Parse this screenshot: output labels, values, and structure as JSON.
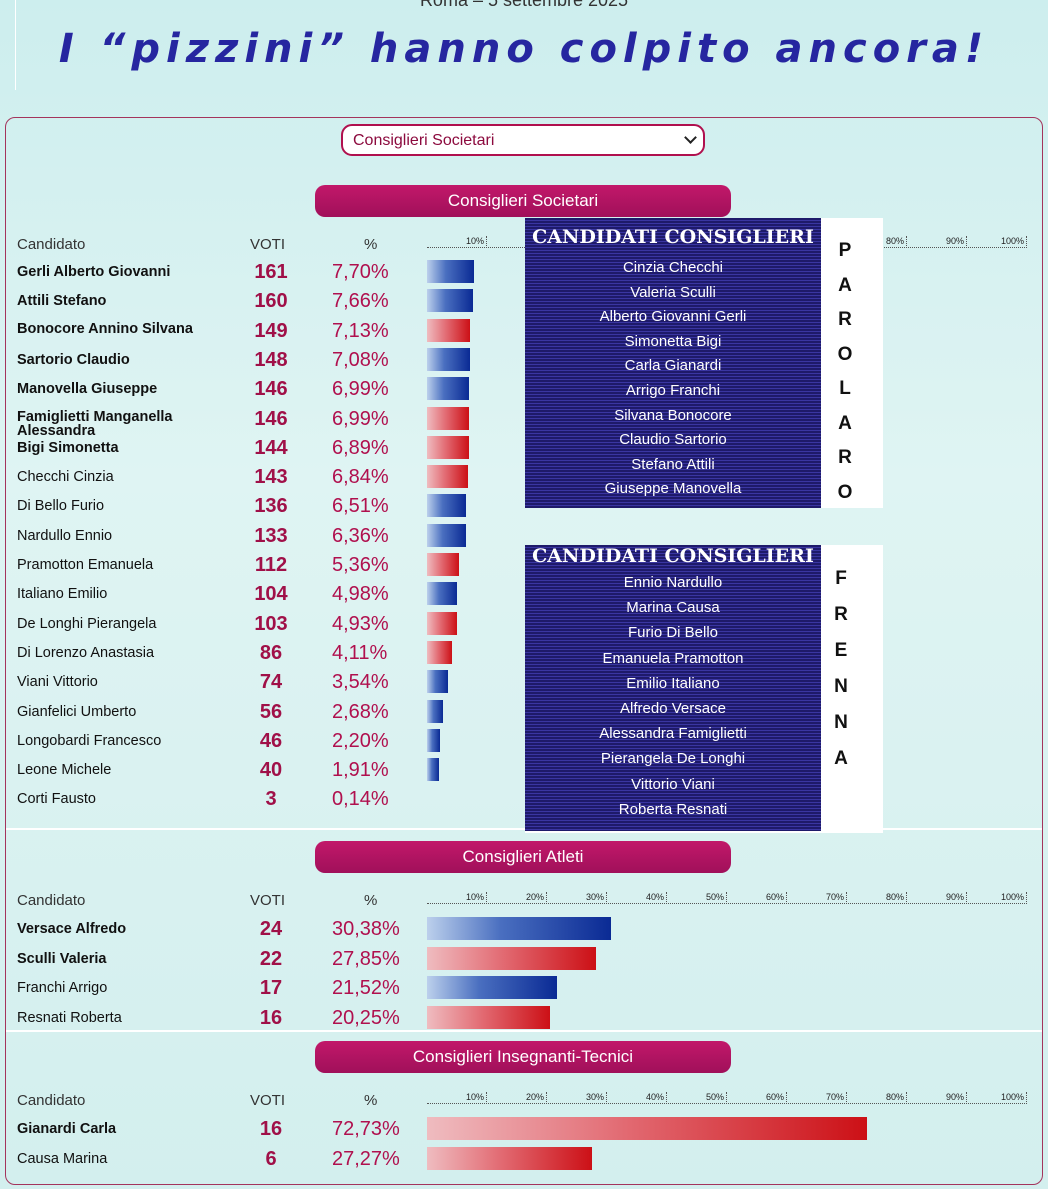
{
  "page": {
    "date_line": "Roma – 5 settembre 2025",
    "headline": "I “pizzini” hanno colpito ancora!",
    "selector_value": "Consiglieri Societari"
  },
  "columns": {
    "candidate": "Candidato",
    "votes": "VOTI",
    "pct": "%"
  },
  "colors": {
    "bar_blue": "#0a2a94",
    "bar_red": "#cc1016",
    "pill": "#b0104e"
  },
  "chart_data": [
    {
      "type": "bar",
      "title": "Consiglieri Societari",
      "xlim": [
        0,
        100
      ],
      "ticks": [
        "10%",
        "20%",
        "30%",
        "40%",
        "50%",
        "60%",
        "70%",
        "80%",
        "90%",
        "100%"
      ],
      "rows": [
        {
          "name": "Gerli Alberto Giovanni",
          "votes": "161",
          "pct_label": "7,70%",
          "pct": 7.7,
          "color": "blue",
          "bold": true
        },
        {
          "name": "Attili Stefano",
          "votes": "160",
          "pct_label": "7,66%",
          "pct": 7.66,
          "color": "blue",
          "bold": true
        },
        {
          "name": "Bonocore Annino Silvana",
          "votes": "149",
          "pct_label": "7,13%",
          "pct": 7.13,
          "color": "red",
          "bold": true
        },
        {
          "name": "Sartorio Claudio",
          "votes": "148",
          "pct_label": "7,08%",
          "pct": 7.08,
          "color": "blue",
          "bold": true
        },
        {
          "name": "Manovella Giuseppe",
          "votes": "146",
          "pct_label": "6,99%",
          "pct": 6.99,
          "color": "blue",
          "bold": true
        },
        {
          "name": "Famiglietti Manganella Alessandra",
          "votes": "146",
          "pct_label": "6,99%",
          "pct": 6.99,
          "color": "red",
          "bold": true
        },
        {
          "name": "Bigi Simonetta",
          "votes": "144",
          "pct_label": "6,89%",
          "pct": 6.89,
          "color": "red",
          "bold": true
        },
        {
          "name": "Checchi Cinzia",
          "votes": "143",
          "pct_label": "6,84%",
          "pct": 6.84,
          "color": "red",
          "bold": false
        },
        {
          "name": "Di Bello Furio",
          "votes": "136",
          "pct_label": "6,51%",
          "pct": 6.51,
          "color": "blue",
          "bold": false
        },
        {
          "name": "Nardullo Ennio",
          "votes": "133",
          "pct_label": "6,36%",
          "pct": 6.36,
          "color": "blue",
          "bold": false
        },
        {
          "name": "Pramotton Emanuela",
          "votes": "112",
          "pct_label": "5,36%",
          "pct": 5.36,
          "color": "red",
          "bold": false
        },
        {
          "name": "Italiano Emilio",
          "votes": "104",
          "pct_label": "4,98%",
          "pct": 4.98,
          "color": "blue",
          "bold": false
        },
        {
          "name": "De Longhi Pierangela",
          "votes": "103",
          "pct_label": "4,93%",
          "pct": 4.93,
          "color": "red",
          "bold": false
        },
        {
          "name": "Di Lorenzo Anastasia",
          "votes": "86",
          "pct_label": "4,11%",
          "pct": 4.11,
          "color": "red",
          "bold": false
        },
        {
          "name": "Viani Vittorio",
          "votes": "74",
          "pct_label": "3,54%",
          "pct": 3.54,
          "color": "blue",
          "bold": false
        },
        {
          "name": "Gianfelici Umberto",
          "votes": "56",
          "pct_label": "2,68%",
          "pct": 2.68,
          "color": "blue",
          "bold": false
        },
        {
          "name": "Longobardi Francesco",
          "votes": "46",
          "pct_label": "2,20%",
          "pct": 2.2,
          "color": "blue",
          "bold": false
        },
        {
          "name": "Leone Michele",
          "votes": "40",
          "pct_label": "1,91%",
          "pct": 1.91,
          "color": "blue",
          "bold": false
        },
        {
          "name": "Corti Fausto",
          "votes": "3",
          "pct_label": "0,14%",
          "pct": 0.14,
          "color": "blue",
          "bold": false
        }
      ]
    },
    {
      "type": "bar",
      "title": "Consiglieri Atleti",
      "xlim": [
        0,
        100
      ],
      "ticks": [
        "10%",
        "20%",
        "30%",
        "40%",
        "50%",
        "60%",
        "70%",
        "80%",
        "90%",
        "100%"
      ],
      "rows": [
        {
          "name": "Versace Alfredo",
          "votes": "24",
          "pct_label": "30,38%",
          "pct": 30.38,
          "color": "blue",
          "bold": true
        },
        {
          "name": "Sculli Valeria",
          "votes": "22",
          "pct_label": "27,85%",
          "pct": 27.85,
          "color": "red",
          "bold": true
        },
        {
          "name": "Franchi Arrigo",
          "votes": "17",
          "pct_label": "21,52%",
          "pct": 21.52,
          "color": "blue",
          "bold": false
        },
        {
          "name": "Resnati Roberta",
          "votes": "16",
          "pct_label": "20,25%",
          "pct": 20.25,
          "color": "red",
          "bold": false
        }
      ]
    },
    {
      "type": "bar",
      "title": "Consiglieri Insegnanti-Tecnici",
      "xlim": [
        0,
        100
      ],
      "ticks": [
        "10%",
        "20%",
        "30%",
        "40%",
        "50%",
        "60%",
        "70%",
        "80%",
        "90%",
        "100%"
      ],
      "rows": [
        {
          "name": "Gianardi Carla",
          "votes": "16",
          "pct_label": "72,73%",
          "pct": 72.73,
          "color": "red",
          "bold": true
        },
        {
          "name": "Causa Marina",
          "votes": "6",
          "pct_label": "27,27%",
          "pct": 27.27,
          "color": "red",
          "bold": false
        }
      ]
    }
  ],
  "overlays": [
    {
      "title": "CANDIDATI CONSIGLIERI",
      "names": [
        "Cinzia Checchi",
        "Valeria Sculli",
        "Alberto Giovanni Gerli",
        "Simonetta Bigi",
        "Carla Gianardi",
        "Arrigo Franchi",
        "Silvana Bonocore",
        "Claudio Sartorio",
        "Stefano Attili",
        "Giuseppe Manovella"
      ],
      "letters": [
        "P",
        "A",
        "R",
        "O",
        "L",
        "A",
        "R",
        "O"
      ]
    },
    {
      "title": "CANDIDATI CONSIGLIERI",
      "names": [
        "Ennio Nardullo",
        "Marina Causa",
        "Furio Di Bello",
        "Emanuela Pramotton",
        "Emilio Italiano",
        "Alfredo Versace",
        "Alessandra Famiglietti",
        "Pierangela De Longhi",
        "Vittorio Viani",
        "Roberta Resnati"
      ],
      "letters": [
        "F",
        "R",
        "E",
        "N",
        "N",
        "A"
      ]
    }
  ]
}
